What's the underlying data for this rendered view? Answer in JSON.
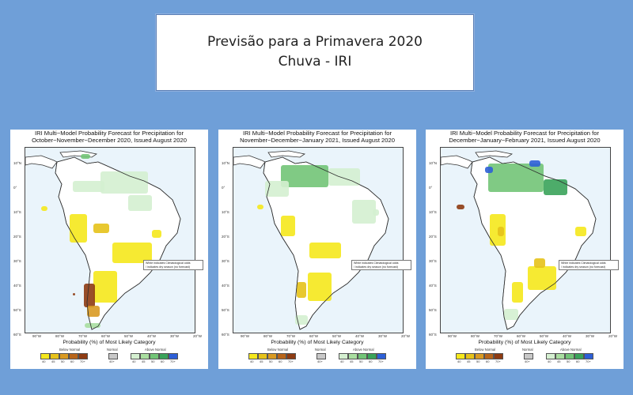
{
  "slide": {
    "title_line1": "Previsão para a Primavera 2020",
    "title_line2": "Chuva - IRI"
  },
  "colors": {
    "background": "#6f9fd8",
    "below_normal": [
      "#f5e81c",
      "#e6c21a",
      "#d99a22",
      "#b8651a",
      "#8e3b12",
      "#5a1e08"
    ],
    "normal": "#c8c8c8",
    "above_normal": [
      "#d4efd0",
      "#a9dea0",
      "#72c477",
      "#3aa35a",
      "#2f9a8d",
      "#2d5fd6"
    ]
  },
  "panels": [
    {
      "title_line1": "IRI Multi−Model Probability Forecast for Precipitation for",
      "title_line2": "October−November−December 2020, Issued August 2020"
    },
    {
      "title_line1": "IRI Multi−Model Probability Forecast for Precipitation for",
      "title_line2": "November−December−January 2021, Issued August 2020"
    },
    {
      "title_line1": "IRI Multi−Model Probability Forecast for Precipitation for",
      "title_line2": "December−January−February 2021, Issued August 2020"
    }
  ],
  "map": {
    "lat_labels": [
      "10°N",
      "0°",
      "10°S",
      "20°S",
      "30°S",
      "40°S",
      "50°S",
      "60°S"
    ],
    "lon_labels": [
      "90°W",
      "80°W",
      "70°W",
      "60°W",
      "50°W",
      "40°W",
      "30°W",
      "20°W"
    ],
    "note_line1": "White indicates Climatological odds",
    "note_line2": "/ indicates dry season (no forecast)"
  },
  "legend": {
    "title": "Probability (%) of Most Likely Category",
    "below_label": "Below Normal",
    "normal_label": "Normal",
    "above_label": "Above Normal",
    "below_ticks": [
      "40",
      "45",
      "50",
      "60",
      "70+"
    ],
    "normal_tick": "40+",
    "above_ticks": [
      "40",
      "45",
      "50",
      "60",
      "70+"
    ]
  }
}
